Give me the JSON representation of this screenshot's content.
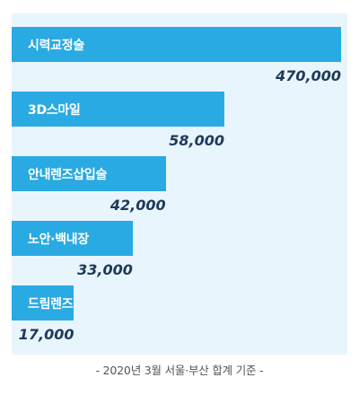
{
  "chart_data": {
    "type": "bar",
    "orientation": "horizontal",
    "categories": [
      "시력교정술",
      "3D스마일",
      "안내렌즈삽입술",
      "노안·백내장",
      "드림렌즈"
    ],
    "values": [
      470000,
      58000,
      42000,
      33000,
      17000
    ],
    "value_labels": [
      "470,000",
      "58,000",
      "42,000",
      "33,000",
      "17,000"
    ],
    "bar_color": "#29aae2",
    "background_color": "#e9f5fc",
    "value_color": "#1e3a5a",
    "axis_break": "first bar truncated (scale not uniform)",
    "grid": false,
    "legend": "none"
  },
  "footnote": "- 2020년 3월 서울·부산 합계 기준 -"
}
